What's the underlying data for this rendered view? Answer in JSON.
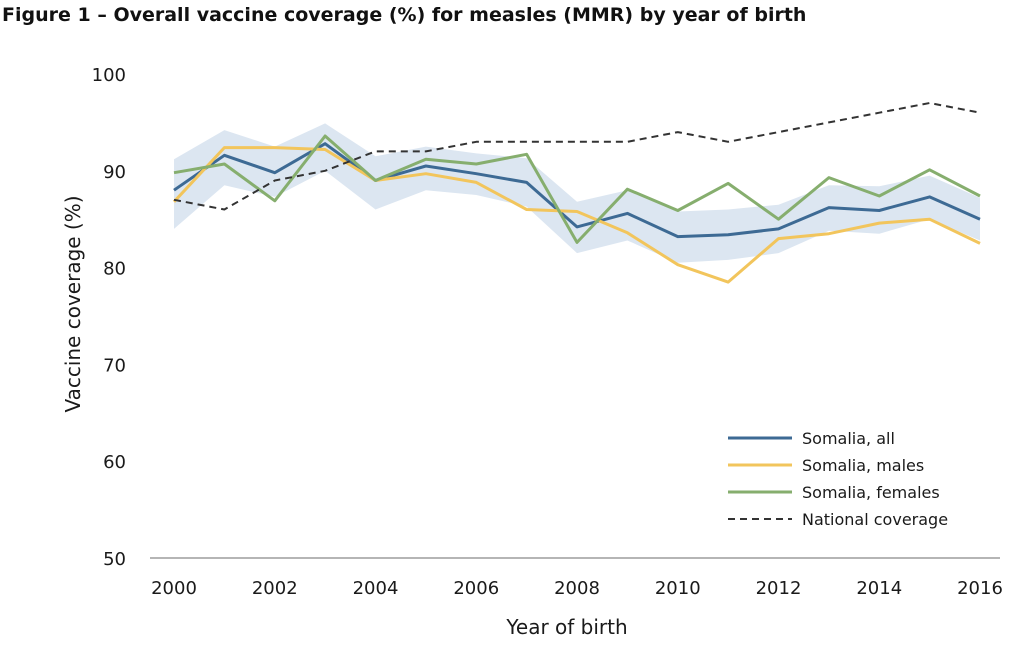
{
  "title": "Figure 1 – Overall vaccine coverage (%) for measles (MMR) by year of birth",
  "chart_data": {
    "type": "line",
    "xlabel": "Year of birth",
    "ylabel": "Vaccine coverage (%)",
    "xlim": [
      2000,
      2016
    ],
    "ylim": [
      50,
      100
    ],
    "x_ticks": [
      2000,
      2002,
      2004,
      2006,
      2008,
      2010,
      2012,
      2014,
      2016
    ],
    "y_ticks": [
      50,
      60,
      70,
      80,
      90,
      100
    ],
    "grid": false,
    "legend_position": "bottom-right",
    "x": [
      2000,
      2001,
      2002,
      2003,
      2004,
      2005,
      2006,
      2007,
      2008,
      2009,
      2010,
      2011,
      2012,
      2013,
      2014,
      2015,
      2016
    ],
    "series": [
      {
        "name": "Somalia, all",
        "color": "#3d6a94",
        "style": "solid",
        "values": [
          88.0,
          91.6,
          89.8,
          92.8,
          89.0,
          90.5,
          89.7,
          88.8,
          84.2,
          85.6,
          83.2,
          83.4,
          84.0,
          86.2,
          85.9,
          87.3,
          85.0
        ]
      },
      {
        "name": "Somalia, males",
        "color": "#f2c55c",
        "style": "solid",
        "values": [
          86.8,
          92.4,
          92.4,
          92.2,
          89.0,
          89.7,
          88.8,
          86.0,
          85.8,
          83.6,
          80.3,
          78.5,
          83.0,
          83.5,
          84.6,
          85.0,
          82.5
        ]
      },
      {
        "name": "Somalia, females",
        "color": "#86ae6e",
        "style": "solid",
        "values": [
          89.8,
          90.7,
          86.9,
          93.6,
          89.0,
          91.2,
          90.7,
          91.7,
          82.6,
          88.1,
          85.9,
          88.7,
          85.0,
          89.3,
          87.4,
          90.1,
          87.4
        ]
      },
      {
        "name": "National coverage",
        "color": "#333333",
        "style": "dashed",
        "values": [
          87.0,
          86.0,
          89.0,
          90.0,
          92.0,
          92.0,
          93.0,
          93.0,
          93.0,
          93.0,
          94.0,
          93.0,
          94.0,
          95.0,
          96.0,
          97.0,
          96.0
        ]
      }
    ],
    "confidence_band": {
      "color": "#dce6f1",
      "lower": [
        84.0,
        88.5,
        87.3,
        90.0,
        86.0,
        88.0,
        87.5,
        86.3,
        81.5,
        82.8,
        80.5,
        80.8,
        81.5,
        83.8,
        83.5,
        85.0,
        82.8
      ],
      "upper": [
        91.2,
        94.2,
        92.5,
        94.9,
        91.5,
        92.5,
        91.8,
        91.3,
        86.8,
        88.0,
        85.8,
        86.0,
        86.5,
        88.5,
        88.4,
        89.5,
        87.2
      ]
    }
  }
}
